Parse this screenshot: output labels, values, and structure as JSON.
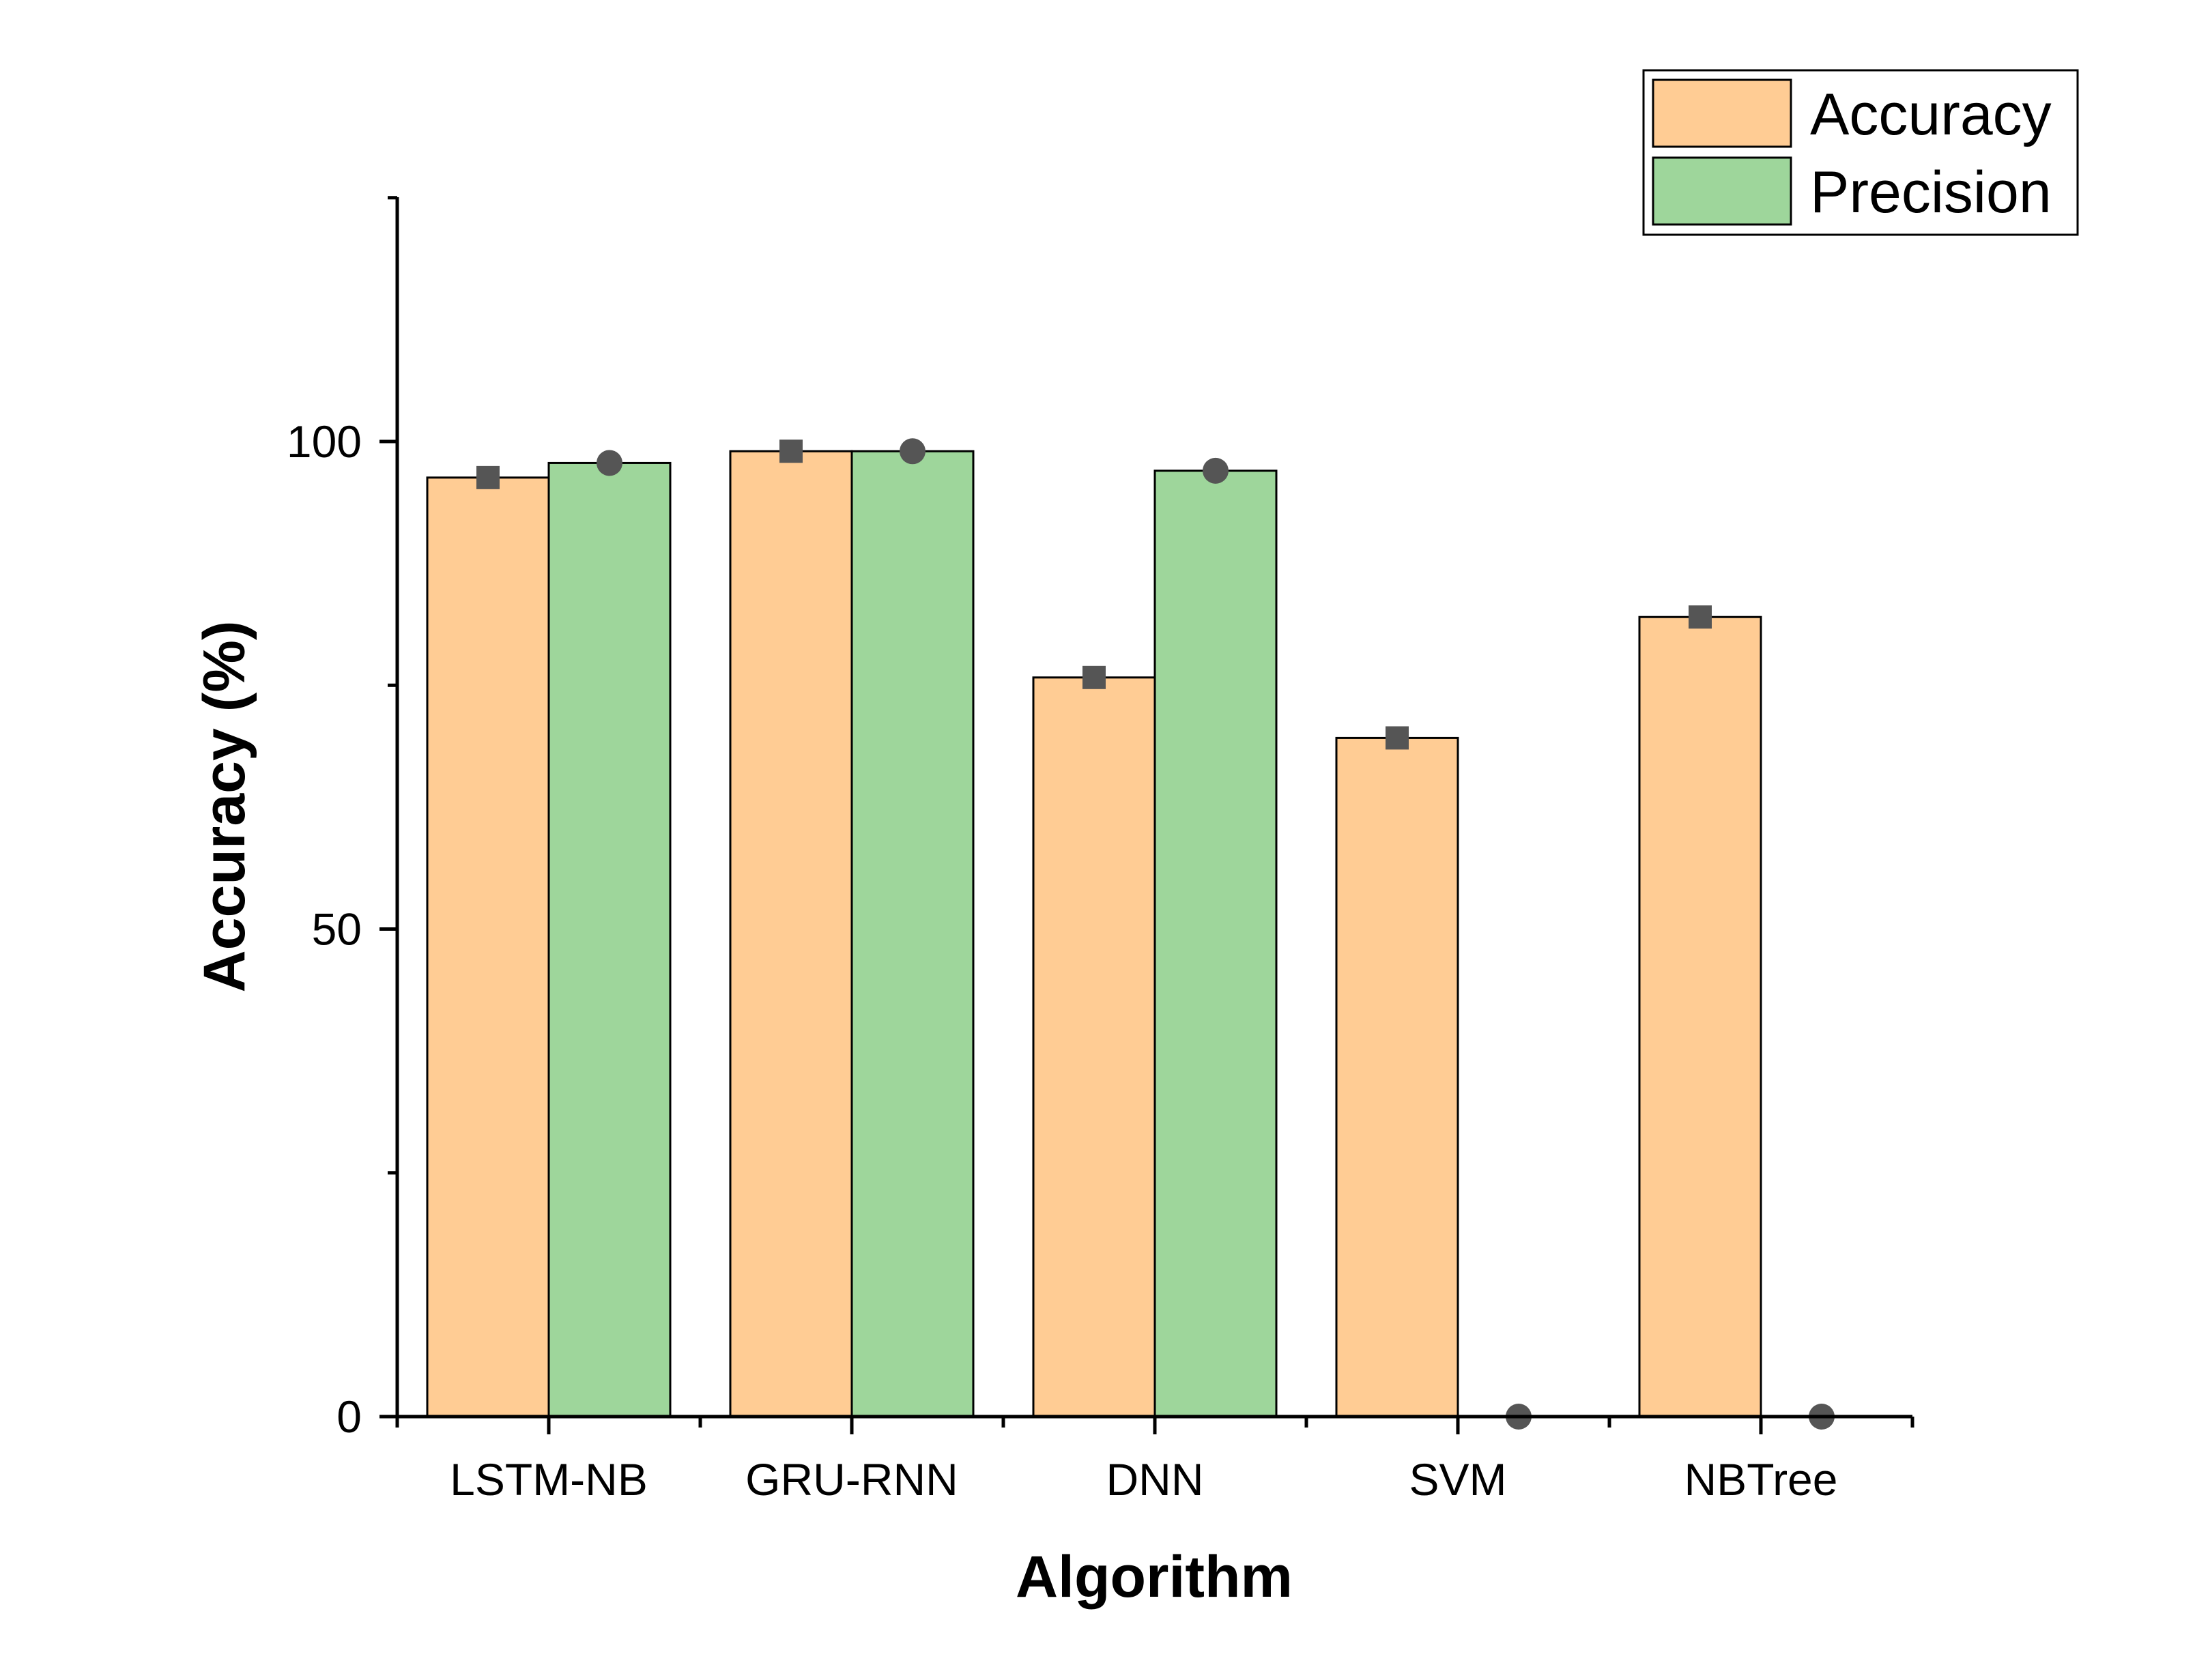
{
  "chart_data": {
    "type": "bar",
    "categories": [
      "LSTM-NB",
      "GRU-RNN",
      "DNN",
      "SVM",
      "NBTree"
    ],
    "series": [
      {
        "name": "Accuracy",
        "values": [
          96.3,
          99.0,
          75.8,
          69.6,
          82.0
        ],
        "color": "#FFCC94",
        "marker": "square"
      },
      {
        "name": "Precision",
        "values": [
          97.8,
          99.0,
          97.0,
          0,
          0
        ],
        "color": "#9ED69B",
        "marker": "circle"
      }
    ],
    "xlabel": "Algorithm",
    "ylabel": "Accuracy (%)",
    "ylim": [
      0,
      125
    ],
    "yticks_major": [
      0,
      50,
      100
    ],
    "yticks_minor": [
      25,
      75
    ],
    "legend_position": "top-right",
    "grid": false
  }
}
